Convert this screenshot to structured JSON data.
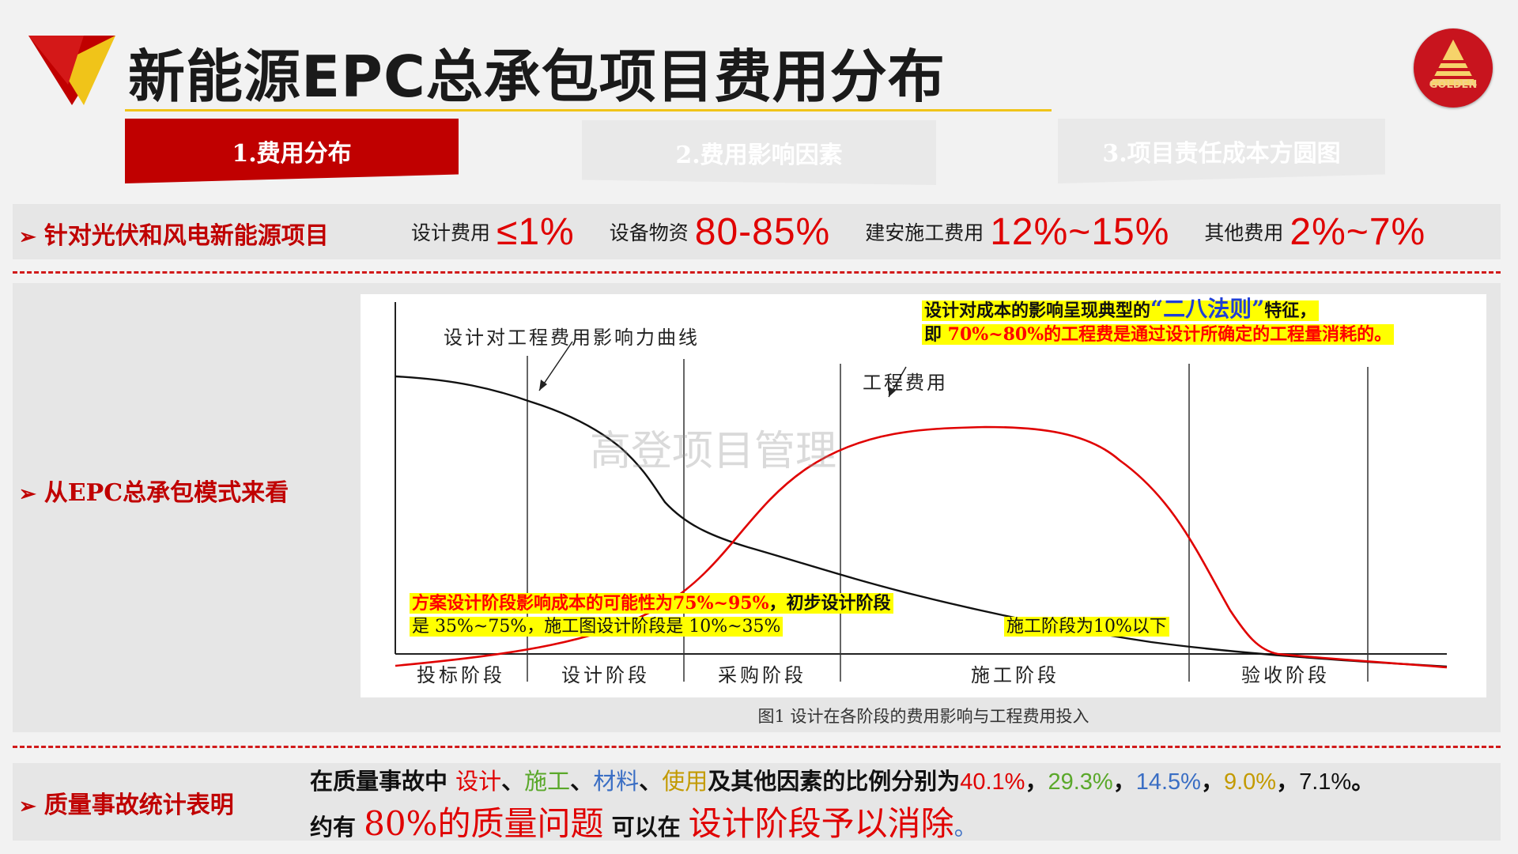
{
  "header": {
    "title": "新能源EPC总承包项目费用分布",
    "logo_text": "GOLDEN",
    "colors": {
      "brand_red": "#c00000",
      "accent_yellow": "#f0c419"
    }
  },
  "tabs": [
    {
      "label": "1.费用分布",
      "active": true
    },
    {
      "label": "2.费用影响因素",
      "active": false
    },
    {
      "label": "3.项目责任成本方圆图",
      "active": false
    }
  ],
  "section1": {
    "label": "针对光伏和风电新能源项目",
    "stats": [
      {
        "label": "设计费用",
        "value": "≤1%"
      },
      {
        "label": "设备物资",
        "value": "80-85%"
      },
      {
        "label": "建安施工费用",
        "value": "12%~15%"
      },
      {
        "label": "其他费用",
        "value": "2%~7%"
      }
    ]
  },
  "section2": {
    "label": "从EPC总承包模式来看",
    "chart": {
      "curve_label_design": "设计对工程费用影响力曲线",
      "curve_label_cost": "工程费用",
      "phases": [
        "投标阶段",
        "设计阶段",
        "采购阶段",
        "施工阶段",
        "验收阶段"
      ],
      "note_top_line1_a": "设计对成本的影响呈现典型的",
      "note_top_line1_b": "“二八法则”",
      "note_top_line1_c": "特征，",
      "note_top_line2_a": "即 ",
      "note_top_line2_b": "70%~80%的工程费是通过设计所确定的工程量消耗的。",
      "note_left_line1_a": "方案设计阶段影响成本的可能性为75%~95%",
      "note_left_line1_b": "，初步设计阶段",
      "note_left_line2": "是 35%~75%，施工图设计阶段是 10%~35%",
      "note_right": "施工阶段为10%以下",
      "watermark": "高登项目管理",
      "caption": "图1 设计在各阶段的费用影响与工程费用投入"
    }
  },
  "section3": {
    "label": "质量事故统计表明",
    "line1": {
      "prefix": "在质量事故中 ",
      "f1": "设计",
      "sep1": "、",
      "f2": "施工",
      "sep2": "、",
      "f3": "材料",
      "sep3": "、",
      "f4": "使用",
      "middle": "及其他因素的比例分别为",
      "p1": "40.1%",
      "c1": "，",
      "p2": "29.3%",
      "c2": "，",
      "p3": "14.5%",
      "c3": "，",
      "p4": "9.0%",
      "c4": "，",
      "p5": "7.1%",
      "end": "。"
    },
    "line2": {
      "a": "约有 ",
      "b": "80%的质量问题",
      "c": " 可以在 ",
      "d": "设计阶段予以消除",
      "e": "。"
    }
  }
}
